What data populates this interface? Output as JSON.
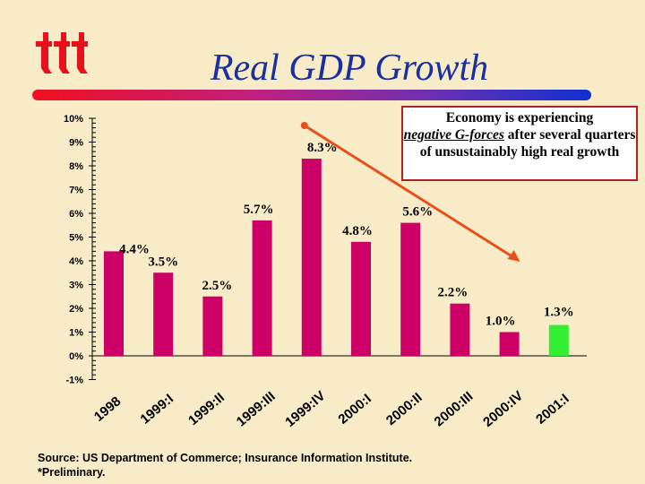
{
  "title": "Real GDP Growth",
  "logo_text": "iii",
  "annotation": {
    "line1": "Economy is experiencing",
    "emph": "negative G-forces",
    "line2": " after several quarters of unsustainably high real growth"
  },
  "source": "Source: US Department of Commerce; Insurance Information Institute.",
  "footnote": "*Preliminary.",
  "colors": {
    "bar": "#cc0066",
    "highlight": "#33ee33",
    "arrow": "#e8501a",
    "title": "#1a2fa0"
  },
  "chart_data": {
    "type": "bar",
    "categories": [
      "1998",
      "1999:I",
      "1999:II",
      "1999:III",
      "1999:IV",
      "2000:I",
      "2000:II",
      "2000:III",
      "2000:IV",
      "2001:I"
    ],
    "values": [
      4.4,
      3.5,
      2.5,
      5.7,
      8.3,
      4.8,
      5.6,
      2.2,
      1.0,
      1.3
    ],
    "data_labels": [
      "4.4%",
      "3.5%",
      "2.5%",
      "5.7%",
      "8.3%",
      "4.8%",
      "5.6%",
      "2.2%",
      "1.0%",
      "1.3%"
    ],
    "highlight_index": 9,
    "ylim": [
      -1,
      10
    ],
    "yticks": [
      "-1%",
      "0%",
      "1%",
      "2%",
      "3%",
      "4%",
      "5%",
      "6%",
      "7%",
      "8%",
      "9%",
      "10%"
    ],
    "grid": false,
    "trend_arrow": {
      "from": "1999:IV",
      "to": "2000:IV"
    }
  }
}
